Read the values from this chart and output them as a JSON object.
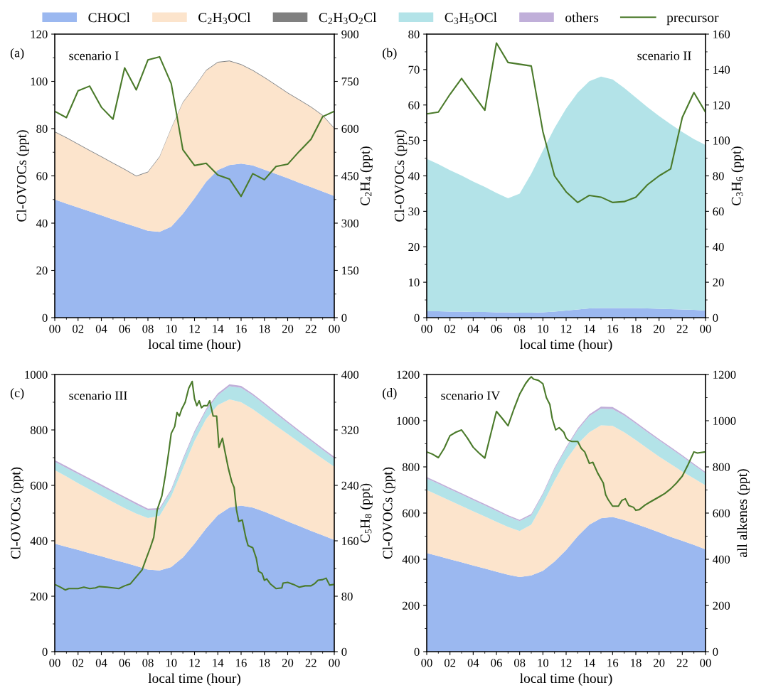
{
  "chart_data": [
    {
      "type": "area",
      "stacked": true,
      "legend": "top",
      "xlabel": "local time (hour)",
      "ylabel": "Cl-OVOCs (ppt)",
      "y2label": "C$_{2}$H$_{4}$ (ppt)",
      "annotations": [
        "(a)",
        "scenario I"
      ],
      "x": [
        0,
        1,
        2,
        3,
        4,
        5,
        6,
        7,
        8,
        9,
        10,
        11,
        12,
        13,
        14,
        15,
        16,
        17,
        18,
        19,
        20,
        21,
        22,
        23,
        24
      ],
      "xlim": [
        0,
        24
      ],
      "xticks": [
        {
          "value": 0,
          "label": "00"
        },
        {
          "value": 2,
          "label": "02"
        },
        {
          "value": 4,
          "label": "04"
        },
        {
          "value": 6,
          "label": "06"
        },
        {
          "value": 8,
          "label": "08"
        },
        {
          "value": 10,
          "label": "10"
        },
        {
          "value": 12,
          "label": "12"
        },
        {
          "value": 14,
          "label": "14"
        },
        {
          "value": 16,
          "label": "16"
        },
        {
          "value": 18,
          "label": "18"
        },
        {
          "value": 20,
          "label": "20"
        },
        {
          "value": 22,
          "label": "22"
        },
        {
          "value": 24,
          "label": "00"
        }
      ],
      "ylim": [
        0,
        120
      ],
      "yticks": [
        0,
        20,
        40,
        60,
        80,
        100,
        120
      ],
      "y2lim": [
        0,
        900
      ],
      "y2ticks": [
        0,
        150,
        300,
        450,
        600,
        750,
        900
      ],
      "series": [
        {
          "name": "CHOCl",
          "color": "#9bb8f0",
          "values": [
            50,
            48.3,
            46.6,
            45,
            43.3,
            41.6,
            40,
            38.4,
            36.8,
            36.3,
            38.5,
            44,
            50.5,
            57.5,
            62.5,
            64.6,
            65.2,
            64.4,
            62.6,
            60.8,
            59,
            57.1,
            55.3,
            53.4,
            51.5
          ]
        },
        {
          "name": "C$_{2}$H$_{3}$OCl",
          "color": "#fce4cc",
          "values": [
            28.5,
            27.7,
            26.7,
            25.6,
            24.7,
            23.7,
            22.6,
            21.4,
            24.7,
            31.7,
            41.5,
            47,
            47,
            47,
            45.5,
            43.9,
            41.8,
            40.1,
            38.9,
            37.5,
            36,
            34.9,
            33.7,
            32.1,
            28.5
          ]
        },
        {
          "name": "C$_{2}$H$_{3}$O$_{2}$Cl",
          "color": "#808080",
          "values": [
            0.3,
            0.3,
            0.3,
            0.3,
            0.3,
            0.3,
            0.3,
            0.3,
            0.3,
            0.3,
            0.3,
            0.3,
            0.3,
            0.3,
            0.3,
            0.3,
            0.3,
            0.3,
            0.3,
            0.3,
            0.3,
            0.3,
            0.3,
            0.3,
            0.3
          ]
        },
        {
          "name": "precursor",
          "type": "line",
          "axis": "y2",
          "color": "#4a7a2a",
          "values": [
            655,
            635,
            720,
            735,
            668,
            630,
            793,
            723,
            818,
            828,
            743,
            533,
            483,
            490,
            453,
            440,
            385,
            457,
            438,
            480,
            487,
            528,
            566,
            638,
            655
          ]
        }
      ]
    },
    {
      "type": "area",
      "stacked": true,
      "xlabel": "local time (hour)",
      "ylabel": "Cl-OVOCs (ppt)",
      "y2label": "C$_{3}$H$_{6}$ (ppt)",
      "annotations": [
        "(b)",
        "scenario II"
      ],
      "x": [
        0,
        1,
        2,
        3,
        4,
        5,
        6,
        7,
        8,
        9,
        10,
        11,
        12,
        13,
        14,
        15,
        16,
        17,
        18,
        19,
        20,
        21,
        22,
        23,
        24
      ],
      "xlim": [
        0,
        24
      ],
      "xticks": [
        {
          "value": 0,
          "label": "00"
        },
        {
          "value": 2,
          "label": "02"
        },
        {
          "value": 4,
          "label": "04"
        },
        {
          "value": 6,
          "label": "06"
        },
        {
          "value": 8,
          "label": "08"
        },
        {
          "value": 10,
          "label": "10"
        },
        {
          "value": 12,
          "label": "12"
        },
        {
          "value": 14,
          "label": "14"
        },
        {
          "value": 16,
          "label": "16"
        },
        {
          "value": 18,
          "label": "18"
        },
        {
          "value": 20,
          "label": "20"
        },
        {
          "value": 22,
          "label": "22"
        },
        {
          "value": 24,
          "label": "00"
        }
      ],
      "ylim": [
        0,
        80
      ],
      "yticks": [
        0,
        10,
        20,
        30,
        40,
        50,
        60,
        70,
        80
      ],
      "y2lim": [
        0,
        160
      ],
      "y2ticks": [
        0,
        20,
        40,
        60,
        80,
        100,
        120,
        140,
        160
      ],
      "series": [
        {
          "name": "CHOCl",
          "color": "#9bb8f0",
          "values": [
            1.8,
            1.8,
            1.7,
            1.7,
            1.6,
            1.6,
            1.5,
            1.5,
            1.4,
            1.4,
            1.5,
            1.7,
            2.0,
            2.3,
            2.6,
            2.7,
            2.7,
            2.7,
            2.7,
            2.6,
            2.5,
            2.4,
            2.3,
            2.2,
            2.0
          ]
        },
        {
          "name": "C$_{3}$H$_{5}$OCl",
          "color": "#b3e3e8",
          "values": [
            43.0,
            41.5,
            39.9,
            38.4,
            36.8,
            35.3,
            33.7,
            32.2,
            33.6,
            39.2,
            45.6,
            51.8,
            57.0,
            61.2,
            64.1,
            65.3,
            64.5,
            62.1,
            59.4,
            56.8,
            54.4,
            52.2,
            50.1,
            48.2,
            46.7
          ]
        },
        {
          "name": "precursor",
          "type": "line",
          "axis": "y2",
          "color": "#4a7a2a",
          "values": [
            115,
            116,
            126,
            135,
            126,
            117,
            155,
            144,
            143,
            142,
            105,
            80,
            71,
            65,
            69,
            68,
            65,
            65.5,
            68,
            75,
            80,
            84,
            113,
            127,
            116
          ]
        }
      ]
    },
    {
      "type": "area",
      "stacked": true,
      "xlabel": "local time (hour)",
      "ylabel": "Cl-OVOCs (ppt)",
      "y2label": "C$_{5}$H$_{8}$ (ppt)",
      "annotations": [
        "(c)",
        "scenario III"
      ],
      "x": [
        0,
        1,
        2,
        3,
        4,
        5,
        6,
        7,
        8,
        9,
        10,
        11,
        12,
        13,
        14,
        15,
        16,
        17,
        18,
        19,
        20,
        21,
        22,
        23,
        24
      ],
      "xlim": [
        0,
        24
      ],
      "xticks": [
        {
          "value": 0,
          "label": "00"
        },
        {
          "value": 2,
          "label": "02"
        },
        {
          "value": 4,
          "label": "04"
        },
        {
          "value": 6,
          "label": "06"
        },
        {
          "value": 8,
          "label": "08"
        },
        {
          "value": 10,
          "label": "10"
        },
        {
          "value": 12,
          "label": "12"
        },
        {
          "value": 14,
          "label": "14"
        },
        {
          "value": 16,
          "label": "16"
        },
        {
          "value": 18,
          "label": "18"
        },
        {
          "value": 20,
          "label": "20"
        },
        {
          "value": 22,
          "label": "22"
        },
        {
          "value": 24,
          "label": "00"
        }
      ],
      "ylim": [
        0,
        1000
      ],
      "yticks": [
        0,
        200,
        400,
        600,
        800,
        1000
      ],
      "y2lim": [
        0,
        400
      ],
      "y2ticks": [
        0,
        80,
        160,
        240,
        320,
        400
      ],
      "series": [
        {
          "name": "CHOCl",
          "color": "#9bb8f0",
          "values": [
            390,
            378,
            367,
            355,
            344,
            332,
            321,
            309,
            296,
            293,
            305,
            340,
            390,
            445,
            492,
            520,
            527,
            520,
            505,
            488,
            470,
            453,
            436,
            420,
            403
          ]
        },
        {
          "name": "C$_{2}$H$_{3}$OCl",
          "color": "#fce4cc",
          "values": [
            265,
            254,
            241,
            230,
            218,
            208,
            197,
            189,
            186,
            197,
            255,
            320,
            370,
            395,
            398,
            390,
            373,
            355,
            340,
            327,
            315,
            302,
            289,
            276,
            264
          ]
        },
        {
          "name": "C$_{3}$H$_{5}$OCl",
          "color": "#b3e3e8",
          "values": [
            30,
            31,
            33,
            34,
            35,
            35,
            35,
            33,
            28,
            22,
            20,
            30,
            30,
            30,
            35,
            48,
            52,
            50,
            47,
            43,
            40,
            37,
            35,
            32,
            30
          ]
        },
        {
          "name": "others",
          "color": "#c0afd9",
          "values": [
            6,
            6,
            6,
            6,
            6,
            6,
            6,
            6,
            6,
            6,
            6,
            6,
            6,
            6,
            7,
            7,
            7,
            6,
            6,
            6,
            6,
            6,
            6,
            6,
            6
          ]
        },
        {
          "name": "precursor",
          "type": "line",
          "axis": "y2",
          "color": "#4a7a2a",
          "x": [
            0,
            0.5,
            0.9,
            1.2,
            2,
            2.5,
            3,
            3.5,
            3.8,
            4.5,
            5,
            5.5,
            6,
            6.5,
            7,
            7.5,
            7.8,
            8.2,
            8.5,
            8.8,
            9.2,
            9.5,
            9.8,
            10.0,
            10.3,
            10.5,
            10.7,
            10.9,
            11.2,
            11.5,
            11.8,
            12.0,
            12.2,
            12.4,
            12.6,
            12.8,
            13.1,
            13.3,
            13.6,
            13.9,
            14.1,
            14.4,
            14.6,
            14.9,
            15.2,
            15.4,
            15.6,
            15.8,
            16.1,
            16.4,
            16.6,
            17.0,
            17.3,
            17.5,
            17.8,
            18.0,
            18.2,
            18.5,
            19.0,
            19.5,
            19.6,
            20.0,
            20.5,
            21.0,
            21.5,
            22.0,
            22.3,
            22.6,
            23.0,
            23.3,
            23.6,
            24
          ],
          "values": [
            97,
            93,
            89,
            91,
            91,
            93,
            91,
            92,
            94,
            93,
            92,
            91,
            95,
            98,
            108,
            118,
            132,
            150,
            165,
            205,
            225,
            255,
            290,
            315,
            325,
            345,
            340,
            350,
            360,
            380,
            390,
            365,
            355,
            362,
            352,
            355,
            355,
            362,
            340,
            340,
            295,
            308,
            290,
            265,
            245,
            237,
            205,
            188,
            190,
            165,
            153,
            150,
            135,
            116,
            113,
            103,
            105,
            98,
            91,
            92,
            99,
            100,
            97,
            93,
            95,
            95,
            98,
            103,
            104,
            106,
            96,
            97
          ]
        }
      ]
    },
    {
      "type": "area",
      "stacked": true,
      "xlabel": "local time (hour)",
      "ylabel": "Cl-OVOCs (ppt)",
      "y2label": "all alkenes (ppt)",
      "annotations": [
        "(d)",
        "scenario IV"
      ],
      "x": [
        0,
        1,
        2,
        3,
        4,
        5,
        6,
        7,
        8,
        9,
        10,
        11,
        12,
        13,
        14,
        15,
        16,
        17,
        18,
        19,
        20,
        21,
        22,
        23,
        24
      ],
      "xlim": [
        0,
        24
      ],
      "xticks": [
        {
          "value": 0,
          "label": "00"
        },
        {
          "value": 2,
          "label": "02"
        },
        {
          "value": 4,
          "label": "04"
        },
        {
          "value": 6,
          "label": "06"
        },
        {
          "value": 8,
          "label": "08"
        },
        {
          "value": 10,
          "label": "10"
        },
        {
          "value": 12,
          "label": "12"
        },
        {
          "value": 14,
          "label": "14"
        },
        {
          "value": 16,
          "label": "16"
        },
        {
          "value": 18,
          "label": "18"
        },
        {
          "value": 20,
          "label": "20"
        },
        {
          "value": 22,
          "label": "22"
        },
        {
          "value": 24,
          "label": "00"
        }
      ],
      "ylim": [
        0,
        1200
      ],
      "yticks": [
        0,
        200,
        400,
        600,
        800,
        1000,
        1200
      ],
      "y2lim": [
        0,
        1200
      ],
      "y2ticks": [
        0,
        200,
        400,
        600,
        800,
        1000,
        1200
      ],
      "series": [
        {
          "name": "CHOCl",
          "color": "#9bb8f0",
          "values": [
            427,
            414,
            400,
            387,
            373,
            360,
            346,
            333,
            323,
            330,
            350,
            390,
            440,
            500,
            550,
            578,
            583,
            570,
            553,
            535,
            517,
            497,
            480,
            462,
            443
          ]
        },
        {
          "name": "C$_{2}$H$_{3}$OCl",
          "color": "#fce4cc",
          "values": [
            273,
            263,
            254,
            244,
            235,
            225,
            216,
            207,
            199,
            220,
            290,
            350,
            390,
            400,
            400,
            402,
            395,
            380,
            363,
            345,
            328,
            315,
            300,
            288,
            277
          ]
        },
        {
          "name": "C$_{3}$H$_{5}$OCl",
          "color": "#b3e3e8",
          "values": [
            50,
            50,
            49,
            49,
            48,
            48,
            47,
            45,
            43,
            40,
            40,
            50,
            50,
            60,
            70,
            72,
            72,
            72,
            71,
            70,
            70,
            68,
            65,
            58,
            52
          ]
        },
        {
          "name": "others",
          "color": "#c0afd9",
          "values": [
            6,
            6,
            6,
            6,
            6,
            6,
            6,
            6,
            6,
            6,
            6,
            6,
            6,
            7,
            8,
            9,
            9,
            8,
            7,
            7,
            6,
            6,
            6,
            6,
            6
          ]
        },
        {
          "name": "precursor",
          "type": "line",
          "axis": "y2",
          "color": "#4a7a2a",
          "x": [
            0,
            0.5,
            1,
            1.5,
            2,
            2.5,
            3,
            3.5,
            4,
            4.5,
            5,
            5.5,
            6,
            6.5,
            7,
            7.5,
            8,
            8.5,
            8.8,
            9,
            9.2,
            9.6,
            10,
            10.3,
            10.6,
            10.8,
            11.1,
            11.4,
            11.8,
            12.0,
            12.2,
            12.5,
            13.0,
            13.3,
            13.6,
            14.0,
            14.3,
            14.7,
            15.2,
            15.4,
            15.6,
            16.0,
            16.5,
            16.8,
            17.1,
            17.4,
            17.8,
            18,
            18.3,
            18.8,
            19.3,
            20,
            20.5,
            21,
            21.5,
            22,
            22.5,
            23,
            23.3,
            24
          ],
          "values": [
            865,
            855,
            840,
            880,
            935,
            950,
            960,
            925,
            885,
            860,
            838,
            940,
            1040,
            1010,
            978,
            1050,
            1115,
            1160,
            1180,
            1190,
            1180,
            1175,
            1160,
            1100,
            1070,
            1010,
            960,
            970,
            950,
            925,
            915,
            910,
            910,
            880,
            865,
            815,
            820,
            775,
            730,
            680,
            660,
            630,
            630,
            655,
            662,
            632,
            625,
            612,
            615,
            635,
            650,
            670,
            685,
            705,
            730,
            760,
            810,
            865,
            860,
            865
          ]
        }
      ]
    }
  ]
}
